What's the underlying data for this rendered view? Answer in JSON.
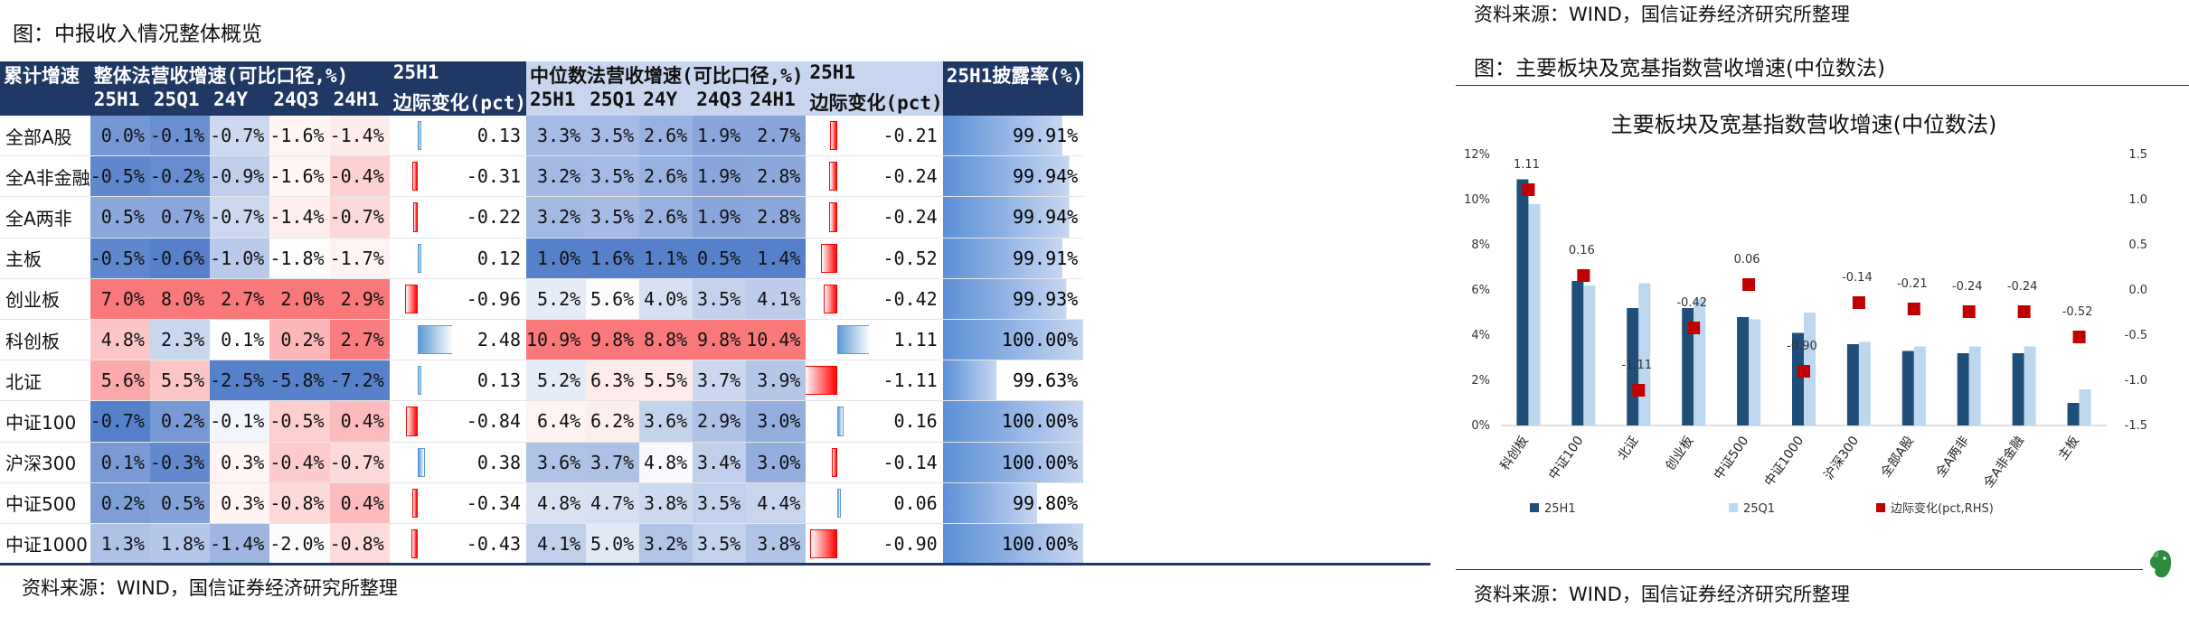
{
  "left": {
    "caption": "图：中报收入情况整体概览",
    "source": "资料来源：WIND，国信证券经济研究所整理",
    "headers": {
      "row_label": "累计增速",
      "overall_group": "整体法营收增速(可比口径,%)",
      "median_group": "中位数法营收增速(可比口径,%)",
      "marginal_top": "25H1",
      "marginal_bottom": "边际变化(pct)",
      "disclosure": "25H1披露率(%)",
      "periods": [
        "25H1",
        "25Q1",
        "24Y",
        "24Q3",
        "24H1"
      ]
    },
    "rows": [
      {
        "name": "全部A股",
        "overall": [
          "0.0%",
          "-0.1%",
          "-0.7%",
          "-1.6%",
          "-1.4%"
        ],
        "overall_delta": "0.13",
        "median": [
          "3.3%",
          "3.5%",
          "2.6%",
          "1.9%",
          "2.7%"
        ],
        "median_delta": "-0.21",
        "rate": "99.91%"
      },
      {
        "name": "全A非金融",
        "overall": [
          "-0.5%",
          "-0.2%",
          "-0.9%",
          "-1.6%",
          "-0.4%"
        ],
        "overall_delta": "-0.31",
        "median": [
          "3.2%",
          "3.5%",
          "2.6%",
          "1.9%",
          "2.8%"
        ],
        "median_delta": "-0.24",
        "rate": "99.94%"
      },
      {
        "name": "全A两非",
        "overall": [
          "0.5%",
          "0.7%",
          "-0.7%",
          "-1.4%",
          "-0.7%"
        ],
        "overall_delta": "-0.22",
        "median": [
          "3.2%",
          "3.5%",
          "2.6%",
          "1.9%",
          "2.8%"
        ],
        "median_delta": "-0.24",
        "rate": "99.94%"
      },
      {
        "name": "主板",
        "overall": [
          "-0.5%",
          "-0.6%",
          "-1.0%",
          "-1.8%",
          "-1.7%"
        ],
        "overall_delta": "0.12",
        "median": [
          "1.0%",
          "1.6%",
          "1.1%",
          "0.5%",
          "1.4%"
        ],
        "median_delta": "-0.52",
        "rate": "99.91%"
      },
      {
        "name": "创业板",
        "overall": [
          "7.0%",
          "8.0%",
          "2.7%",
          "2.0%",
          "2.9%"
        ],
        "overall_delta": "-0.96",
        "median": [
          "5.2%",
          "5.6%",
          "4.0%",
          "3.5%",
          "4.1%"
        ],
        "median_delta": "-0.42",
        "rate": "99.93%"
      },
      {
        "name": "科创板",
        "overall": [
          "4.8%",
          "2.3%",
          "0.1%",
          "0.2%",
          "2.7%"
        ],
        "overall_delta": "2.48",
        "median": [
          "10.9%",
          "9.8%",
          "8.8%",
          "9.8%",
          "10.4%"
        ],
        "median_delta": "1.11",
        "rate": "100.00%"
      },
      {
        "name": "北证",
        "overall": [
          "5.6%",
          "5.5%",
          "-2.5%",
          "-5.8%",
          "-7.2%"
        ],
        "overall_delta": "0.13",
        "median": [
          "5.2%",
          "6.3%",
          "5.5%",
          "3.7%",
          "3.9%"
        ],
        "median_delta": "-1.11",
        "rate": "99.63%"
      },
      {
        "name": "中证100",
        "overall": [
          "-0.7%",
          "0.2%",
          "-0.1%",
          "-0.5%",
          "0.4%"
        ],
        "overall_delta": "-0.84",
        "median": [
          "6.4%",
          "6.2%",
          "3.6%",
          "2.9%",
          "3.0%"
        ],
        "median_delta": "0.16",
        "rate": "100.00%"
      },
      {
        "name": "沪深300",
        "overall": [
          "0.1%",
          "-0.3%",
          "0.3%",
          "-0.4%",
          "-0.7%"
        ],
        "overall_delta": "0.38",
        "median": [
          "3.6%",
          "3.7%",
          "4.8%",
          "3.4%",
          "3.0%"
        ],
        "median_delta": "-0.14",
        "rate": "100.00%"
      },
      {
        "name": "中证500",
        "overall": [
          "0.2%",
          "0.5%",
          "0.3%",
          "-0.8%",
          "0.4%"
        ],
        "overall_delta": "-0.34",
        "median": [
          "4.8%",
          "4.7%",
          "3.8%",
          "3.5%",
          "4.4%"
        ],
        "median_delta": "0.06",
        "rate": "99.80%"
      },
      {
        "name": "中证1000",
        "overall": [
          "1.3%",
          "1.8%",
          "-1.4%",
          "-2.0%",
          "-0.8%"
        ],
        "overall_delta": "-0.43",
        "median": [
          "4.1%",
          "5.0%",
          "3.2%",
          "3.5%",
          "3.8%"
        ],
        "median_delta": "-0.90",
        "rate": "100.00%"
      }
    ]
  },
  "right": {
    "top_source": "资料来源：WIND，国信证券经济研究所整理",
    "caption": "图：主要板块及宽基指数营收增速(中位数法)",
    "bottom_source": "资料来源：WIND，国信证券经济研究所整理"
  },
  "chart_data": {
    "type": "bar",
    "title": "主要板块及宽基指数营收增速(中位数法)",
    "categories": [
      "科创板",
      "中证100",
      "北证",
      "创业板",
      "中证500",
      "中证1000",
      "沪深300",
      "全部A股",
      "全A两非",
      "全A非金融",
      "主板"
    ],
    "series": [
      {
        "name": "25H1",
        "type": "bar",
        "axis": "left",
        "color": "#1f4e79",
        "values": [
          10.9,
          6.4,
          5.2,
          5.2,
          4.8,
          4.1,
          3.6,
          3.3,
          3.2,
          3.2,
          1.0
        ]
      },
      {
        "name": "25Q1",
        "type": "bar",
        "axis": "left",
        "color": "#bdd7ee",
        "values": [
          9.8,
          6.2,
          6.3,
          5.6,
          4.7,
          5.0,
          3.7,
          3.5,
          3.5,
          3.5,
          1.6
        ]
      },
      {
        "name": "边际变化(pct,RHS)",
        "type": "marker",
        "axis": "right",
        "color": "#c00000",
        "values": [
          1.11,
          0.16,
          -1.11,
          -0.42,
          0.06,
          -0.9,
          -0.14,
          -0.21,
          -0.24,
          -0.24,
          -0.52
        ]
      }
    ],
    "data_labels": [
      "1.11",
      "0.16",
      "-1.11",
      "-0.42",
      "0.06",
      "-0.90",
      "-0.14",
      "-0.21",
      "-0.24",
      "-0.24",
      "-0.52"
    ],
    "ylim_left": [
      0,
      12
    ],
    "yticks_left": [
      "0%",
      "2%",
      "4%",
      "6%",
      "8%",
      "10%",
      "12%"
    ],
    "ylim_right": [
      -1.5,
      1.5
    ],
    "yticks_right": [
      "-1.5",
      "-1.0",
      "-0.5",
      "0.0",
      "0.5",
      "1.0",
      "1.5"
    ],
    "legend_position": "bottom",
    "grid": false
  },
  "colors": {
    "header_bg": "#1f3864",
    "median_header_bg": "#c7d5ef",
    "neg_blue": "#4472c4",
    "pos_red": "#f8696b",
    "databar_red": "#ff0000",
    "databar_blue": "#5b9bd5",
    "bar_dark": "#1f4e79",
    "bar_light": "#bdd7ee",
    "marker_red": "#c00000",
    "logo_green": "#2e8b3e"
  },
  "icons": {
    "logo": "evernote-elephant-icon"
  }
}
